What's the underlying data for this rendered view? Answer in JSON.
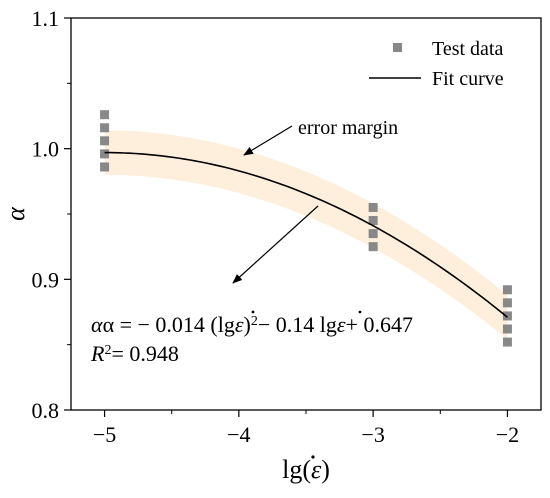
{
  "chart_data": {
    "type": "scatter",
    "xlabel": "lg(ε̇)",
    "ylabel": "α",
    "xlim": [
      -5.25,
      -1.75
    ],
    "ylim": [
      0.8,
      1.1
    ],
    "x_ticks": [
      -5,
      -4,
      -3,
      -2
    ],
    "x_tick_labels": [
      "−5",
      "−4",
      "−3",
      "−2"
    ],
    "y_ticks": [
      0.8,
      0.9,
      1.0,
      1.1
    ],
    "y_tick_labels": [
      "0.8",
      "0.9",
      "1.0",
      "1.1"
    ],
    "grid": false,
    "legend_position": "top-right",
    "series": [
      {
        "name": "Test data",
        "kind": "scatter",
        "marker": "square",
        "color": "#888888",
        "points": [
          {
            "x": -5,
            "y": 1.026
          },
          {
            "x": -5,
            "y": 1.016
          },
          {
            "x": -5,
            "y": 1.006
          },
          {
            "x": -5,
            "y": 0.996
          },
          {
            "x": -5,
            "y": 0.986
          },
          {
            "x": -3,
            "y": 0.955
          },
          {
            "x": -3,
            "y": 0.945
          },
          {
            "x": -3,
            "y": 0.935
          },
          {
            "x": -3,
            "y": 0.925
          },
          {
            "x": -2,
            "y": 0.892
          },
          {
            "x": -2,
            "y": 0.882
          },
          {
            "x": -2,
            "y": 0.872
          },
          {
            "x": -2,
            "y": 0.862
          },
          {
            "x": -2,
            "y": 0.852
          }
        ]
      },
      {
        "name": "Fit curve",
        "kind": "line",
        "color": "#000000",
        "coefficients": {
          "a": -0.014,
          "b": -0.14,
          "c": 0.647
        },
        "x_range": [
          -5,
          -2
        ]
      }
    ],
    "band": {
      "label": "error margin",
      "color": "#fdefdc",
      "half_width": 0.017
    },
    "annotations": {
      "error_margin": "error margin",
      "equation_left": "α = − 0.014 (lg",
      "equation_right": "− 0.14 lg",
      "equation_tail": "+ 0.647",
      "eq_epsilon": "ε",
      "eq_sup": "2",
      "r2_prefix": "R",
      "r2_sup": "2",
      "r2_value": "= 0.948"
    }
  }
}
